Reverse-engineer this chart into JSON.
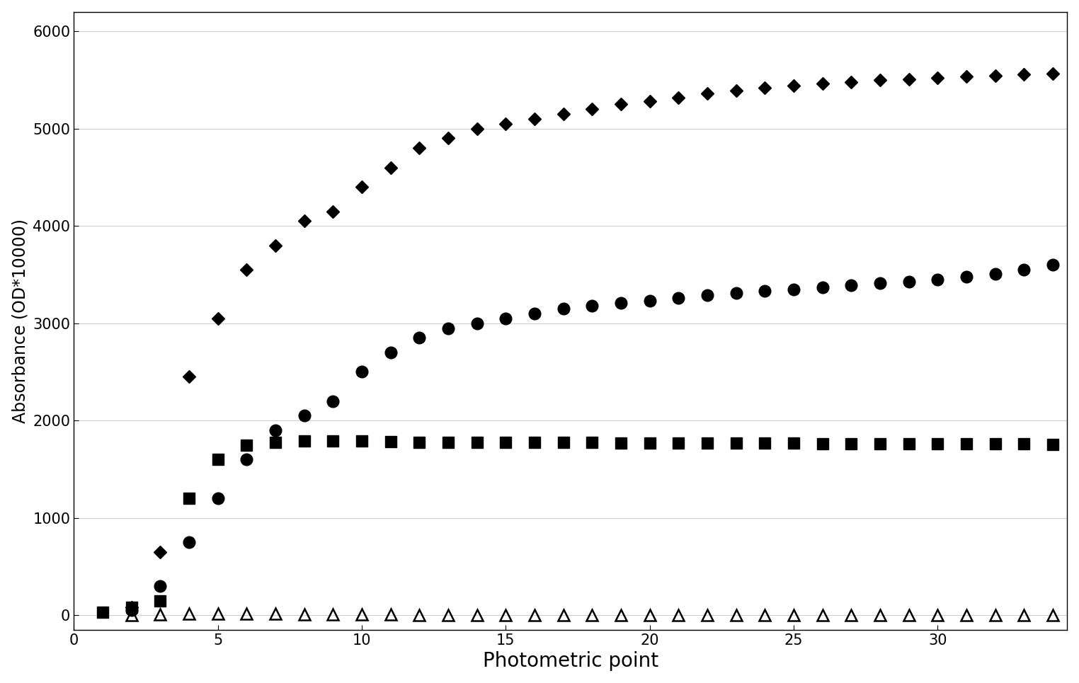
{
  "xlabel": "Photometric point",
  "ylabel": "Absorbance (OD*10000)",
  "xlim": [
    0,
    34.5
  ],
  "ylim": [
    -150,
    6200
  ],
  "yticks": [
    0,
    1000,
    2000,
    3000,
    4000,
    5000,
    6000
  ],
  "xticks": [
    0,
    5,
    10,
    15,
    20,
    25,
    30
  ],
  "background_color": "#ffffff",
  "grid_color": "#888888",
  "diamonds_x": [
    2,
    3,
    4,
    5,
    6,
    7,
    8,
    9,
    10,
    11,
    12,
    13,
    14,
    15,
    16,
    17,
    18,
    19,
    20,
    21,
    22,
    23,
    24,
    25,
    26,
    27,
    28,
    29,
    30,
    31,
    32,
    33,
    34
  ],
  "diamonds_y": [
    80,
    650,
    2450,
    3050,
    3550,
    3800,
    4050,
    4150,
    4400,
    4600,
    4800,
    4900,
    5000,
    5050,
    5100,
    5150,
    5200,
    5250,
    5280,
    5320,
    5360,
    5390,
    5420,
    5440,
    5460,
    5480,
    5500,
    5510,
    5520,
    5535,
    5545,
    5555,
    5565
  ],
  "circles_x": [
    2,
    3,
    4,
    5,
    6,
    7,
    8,
    9,
    10,
    11,
    12,
    13,
    14,
    15,
    16,
    17,
    18,
    19,
    20,
    21,
    22,
    23,
    24,
    25,
    26,
    27,
    28,
    29,
    30,
    31,
    32,
    33,
    34
  ],
  "circles_y": [
    50,
    300,
    750,
    1200,
    1600,
    1900,
    2050,
    2200,
    2500,
    2700,
    2850,
    2950,
    3000,
    3050,
    3100,
    3150,
    3180,
    3210,
    3230,
    3260,
    3290,
    3310,
    3330,
    3350,
    3370,
    3390,
    3410,
    3430,
    3450,
    3480,
    3510,
    3550,
    3600
  ],
  "squares_x": [
    1,
    2,
    3,
    4,
    5,
    6,
    7,
    8,
    9,
    10,
    11,
    12,
    13,
    14,
    15,
    16,
    17,
    18,
    19,
    20,
    21,
    22,
    23,
    24,
    25,
    26,
    27,
    28,
    29,
    30,
    31,
    32,
    33,
    34
  ],
  "squares_y": [
    30,
    80,
    150,
    1200,
    1600,
    1750,
    1780,
    1790,
    1790,
    1790,
    1785,
    1780,
    1780,
    1775,
    1775,
    1775,
    1775,
    1775,
    1770,
    1770,
    1770,
    1770,
    1770,
    1770,
    1770,
    1765,
    1765,
    1765,
    1765,
    1765,
    1760,
    1760,
    1760,
    1755
  ],
  "triangles_x": [
    2,
    3,
    4,
    5,
    6,
    7,
    8,
    9,
    10,
    11,
    12,
    13,
    14,
    15,
    16,
    17,
    18,
    19,
    20,
    21,
    22,
    23,
    24,
    25,
    26,
    27,
    28,
    29,
    30,
    31,
    32,
    33,
    34
  ],
  "triangles_y": [
    5,
    10,
    20,
    20,
    15,
    15,
    10,
    10,
    10,
    10,
    5,
    5,
    5,
    5,
    5,
    5,
    5,
    5,
    5,
    5,
    5,
    5,
    5,
    5,
    5,
    0,
    0,
    0,
    0,
    0,
    0,
    0,
    0
  ],
  "marker_color": "#000000",
  "diamond_size": 9,
  "circle_size": 12,
  "square_size": 11,
  "triangle_size": 11,
  "linewidth": 0
}
